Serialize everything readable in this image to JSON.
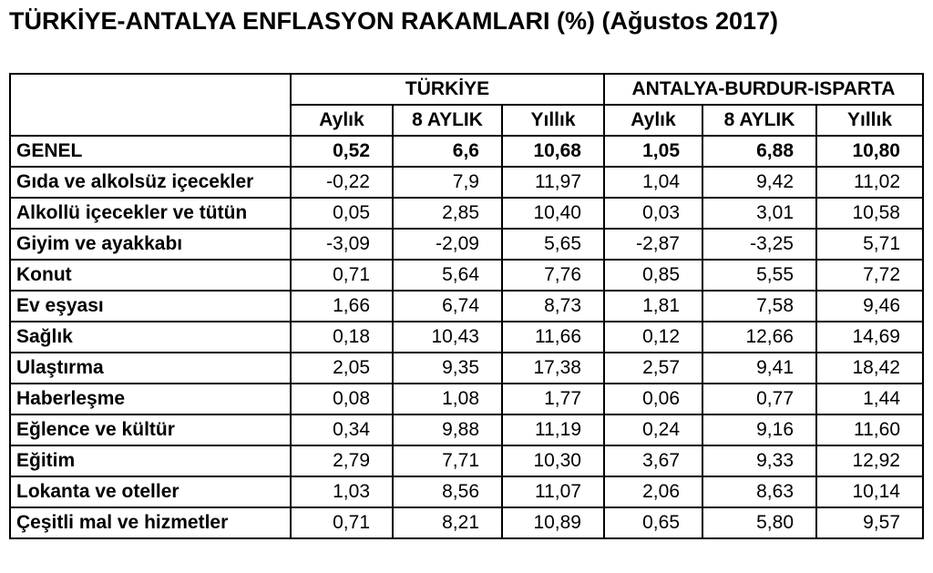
{
  "title": "TÜRKİYE-ANTALYA ENFLASYON RAKAMLARI (%) (Ağustos 2017)",
  "table": {
    "groups": [
      "TÜRKİYE",
      "ANTALYA-BURDUR-ISPARTA"
    ],
    "columns": [
      "Aylık",
      "8 AYLIK",
      "Yıllık",
      "Aylık",
      "8 AYLIK",
      "Yıllık"
    ],
    "rows": [
      [
        "GENEL",
        "0,52",
        "6,6",
        "10,68",
        "1,05",
        "6,88",
        "10,80"
      ],
      [
        "Gıda ve alkolsüz içecekler",
        "-0,22",
        "7,9",
        "11,97",
        "1,04",
        "9,42",
        "11,02"
      ],
      [
        "Alkollü içecekler ve tütün",
        "0,05",
        "2,85",
        "10,40",
        "0,03",
        "3,01",
        "10,58"
      ],
      [
        "Giyim ve ayakkabı",
        "-3,09",
        "-2,09",
        "5,65",
        "-2,87",
        "-3,25",
        "5,71"
      ],
      [
        "Konut",
        "0,71",
        "5,64",
        "7,76",
        "0,85",
        "5,55",
        "7,72"
      ],
      [
        "Ev eşyası",
        "1,66",
        "6,74",
        "8,73",
        "1,81",
        "7,58",
        "9,46"
      ],
      [
        "Sağlık",
        "0,18",
        "10,43",
        "11,66",
        "0,12",
        "12,66",
        "14,69"
      ],
      [
        "Ulaştırma",
        "2,05",
        "9,35",
        "17,38",
        "2,57",
        "9,41",
        "18,42"
      ],
      [
        "Haberleşme",
        "0,08",
        "1,08",
        "1,77",
        "0,06",
        "0,77",
        "1,44"
      ],
      [
        "Eğlence ve kültür",
        "0,34",
        "9,88",
        "11,19",
        "0,24",
        "9,16",
        "11,60"
      ],
      [
        "Eğitim",
        "2,79",
        "7,71",
        "10,30",
        "3,67",
        "9,33",
        "12,92"
      ],
      [
        "Lokanta ve oteller",
        "1,03",
        "8,56",
        "11,07",
        "2,06",
        "8,63",
        "10,14"
      ],
      [
        "Çeşitli mal ve hizmetler",
        "0,71",
        "8,21",
        "10,89",
        "0,65",
        "5,80",
        "9,57"
      ]
    ]
  }
}
